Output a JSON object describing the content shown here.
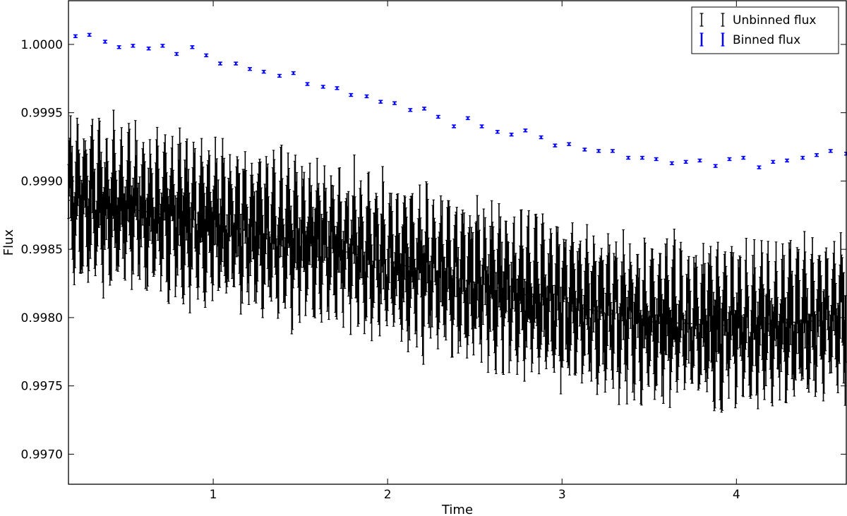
{
  "chart_data": {
    "type": "errorbar",
    "xlabel": "Time",
    "ylabel": "Flux",
    "xlim": [
      0.17,
      4.63
    ],
    "ylim": [
      0.99678,
      1.00032
    ],
    "xticks": [
      1,
      2,
      3,
      4
    ],
    "xtick_labels": [
      "1",
      "2",
      "3",
      "4"
    ],
    "yticks": [
      0.997,
      0.9975,
      0.998,
      0.9985,
      0.999,
      0.9995,
      1.0
    ],
    "ytick_labels": [
      "0.9970",
      "0.9975",
      "0.9980",
      "0.9985",
      "0.9990",
      "0.9995",
      "1.0000"
    ],
    "grid": false,
    "legend_position": "top-right",
    "series": [
      {
        "name": "Unbinned flux",
        "color": "#000000",
        "marker": "errorbar",
        "x_range": [
          0.17,
          4.63
        ],
        "sampling_interval": 0.00417,
        "oscillation_period": 0.0417,
        "oscillation_amplitude": 0.00025,
        "typical_error": 0.00028,
        "trend": {
          "x": [
            0.17,
            0.5,
            1.0,
            1.5,
            2.0,
            2.5,
            3.0,
            3.5,
            4.0,
            4.5,
            4.63
          ],
          "y": [
            0.99886,
            0.9988,
            0.99869,
            0.99856,
            0.99841,
            0.99826,
            0.9981,
            0.99797,
            0.99794,
            0.99798,
            0.998
          ]
        }
      },
      {
        "name": "Binned flux",
        "color": "#0000ff",
        "marker": "errorbar",
        "x": [
          0.21,
          0.29,
          0.38,
          0.46,
          0.54,
          0.63,
          0.71,
          0.79,
          0.88,
          0.96,
          1.04,
          1.13,
          1.21,
          1.29,
          1.38,
          1.46,
          1.54,
          1.63,
          1.71,
          1.79,
          1.88,
          1.96,
          2.04,
          2.13,
          2.21,
          2.29,
          2.38,
          2.46,
          2.54,
          2.63,
          2.71,
          2.79,
          2.88,
          2.96,
          3.04,
          3.13,
          3.21,
          3.29,
          3.38,
          3.46,
          3.54,
          3.63,
          3.71,
          3.79,
          3.88,
          3.96,
          4.04,
          4.13,
          4.21,
          4.29,
          4.38,
          4.46,
          4.54,
          4.63
        ],
        "y": [
          1.00006,
          1.00007,
          1.00002,
          0.99998,
          0.99999,
          0.99997,
          0.99999,
          0.99993,
          0.99998,
          0.99992,
          0.99986,
          0.99986,
          0.99982,
          0.9998,
          0.99977,
          0.99979,
          0.99971,
          0.99969,
          0.99968,
          0.99963,
          0.99962,
          0.99958,
          0.99957,
          0.99952,
          0.99953,
          0.99947,
          0.9994,
          0.99946,
          0.9994,
          0.99936,
          0.99934,
          0.99937,
          0.99932,
          0.99926,
          0.99927,
          0.99923,
          0.99922,
          0.99922,
          0.99917,
          0.99917,
          0.99916,
          0.99913,
          0.99914,
          0.99915,
          0.99911,
          0.99916,
          0.99917,
          0.9991,
          0.99914,
          0.99915,
          0.99917,
          0.99919,
          0.99922,
          0.9992
        ],
        "error": 1e-05
      }
    ]
  }
}
